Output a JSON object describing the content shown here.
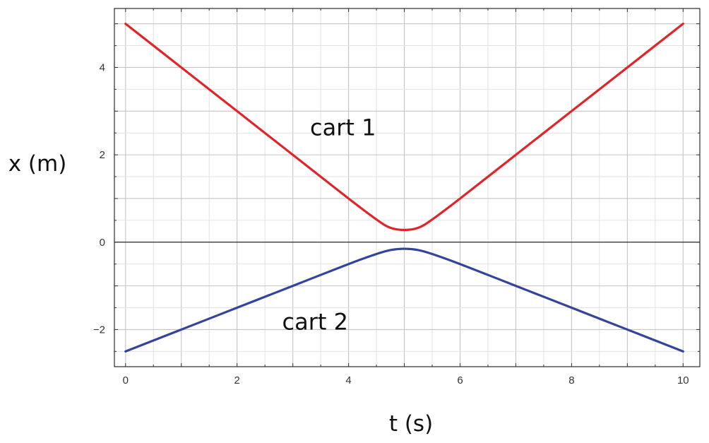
{
  "chart_data": {
    "type": "line",
    "xlabel": "t (s)",
    "ylabel": "x (m)",
    "xlim": [
      -0.2,
      10.3
    ],
    "ylim": [
      -2.85,
      5.35
    ],
    "xticks": [
      0,
      2,
      4,
      6,
      8,
      10
    ],
    "xtick_labels": [
      "0",
      "2",
      "4",
      "6",
      "8",
      "10"
    ],
    "yticks": [
      -2,
      0,
      2,
      4
    ],
    "ytick_labels": [
      "−2",
      "0",
      "2",
      "4"
    ],
    "grid": true,
    "series": [
      {
        "color": "#e0242a",
        "points": [
          [
            0,
            5.0
          ],
          [
            1,
            4.0
          ],
          [
            2,
            3.0
          ],
          [
            3,
            2.0
          ],
          [
            4,
            1.0
          ],
          [
            4.5,
            0.52
          ],
          [
            4.75,
            0.33
          ],
          [
            5,
            0.28
          ],
          [
            5.25,
            0.33
          ],
          [
            5.5,
            0.52
          ],
          [
            6,
            1.0
          ],
          [
            7,
            2.0
          ],
          [
            8,
            3.0
          ],
          [
            9,
            4.0
          ],
          [
            10,
            5.0
          ]
        ]
      },
      {
        "color": "#34449c",
        "points": [
          [
            0,
            -2.5
          ],
          [
            1,
            -2.0
          ],
          [
            2,
            -1.5
          ],
          [
            3,
            -1.0
          ],
          [
            4,
            -0.5
          ],
          [
            4.5,
            -0.27
          ],
          [
            4.75,
            -0.18
          ],
          [
            5,
            -0.15
          ],
          [
            5.25,
            -0.18
          ],
          [
            5.5,
            -0.27
          ],
          [
            6,
            -0.5
          ],
          [
            7,
            -1.0
          ],
          [
            8,
            -1.5
          ],
          [
            9,
            -2.0
          ],
          [
            10,
            -2.5
          ]
        ]
      }
    ],
    "annotations": [
      {
        "text": "cart 1",
        "x": 3.9,
        "y": 2.45
      },
      {
        "text": "cart 2",
        "x": 3.4,
        "y": -2.0
      }
    ]
  }
}
